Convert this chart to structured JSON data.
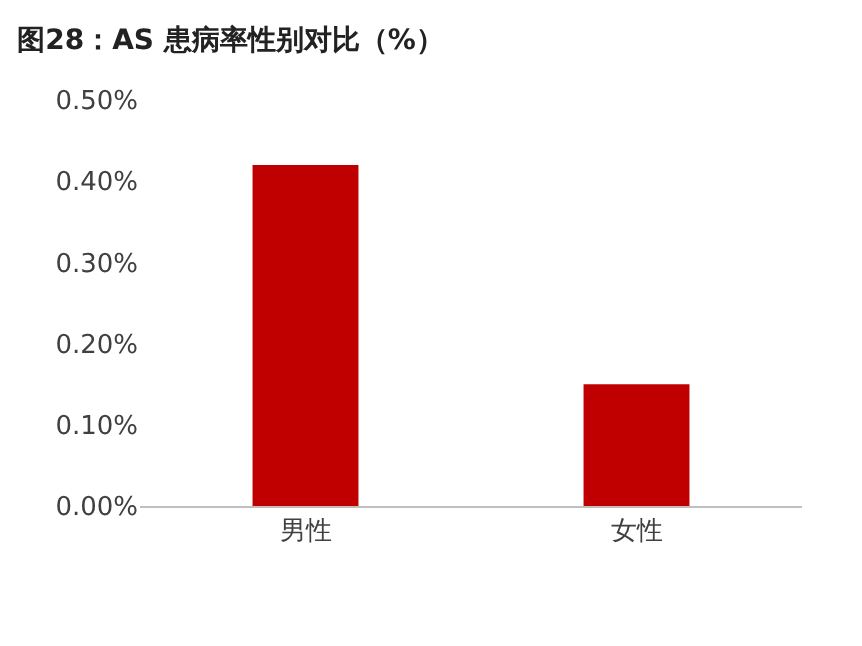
{
  "chart_data": {
    "type": "bar",
    "title": "图28：AS 患病率性别对比（%）",
    "categories": [
      "男性",
      "女性"
    ],
    "values": [
      0.42,
      0.15
    ],
    "color": "#c00000",
    "ylim": [
      0,
      0.5
    ],
    "yticks": [
      {
        "value": 0,
        "label": "0.00%"
      },
      {
        "value": 0.1,
        "label": "0.10%"
      },
      {
        "value": 0.2,
        "label": "0.20%"
      },
      {
        "value": 0.3,
        "label": "0.30%"
      },
      {
        "value": 0.4,
        "label": "0.40%"
      },
      {
        "value": 0.5,
        "label": "0.50%"
      }
    ]
  }
}
